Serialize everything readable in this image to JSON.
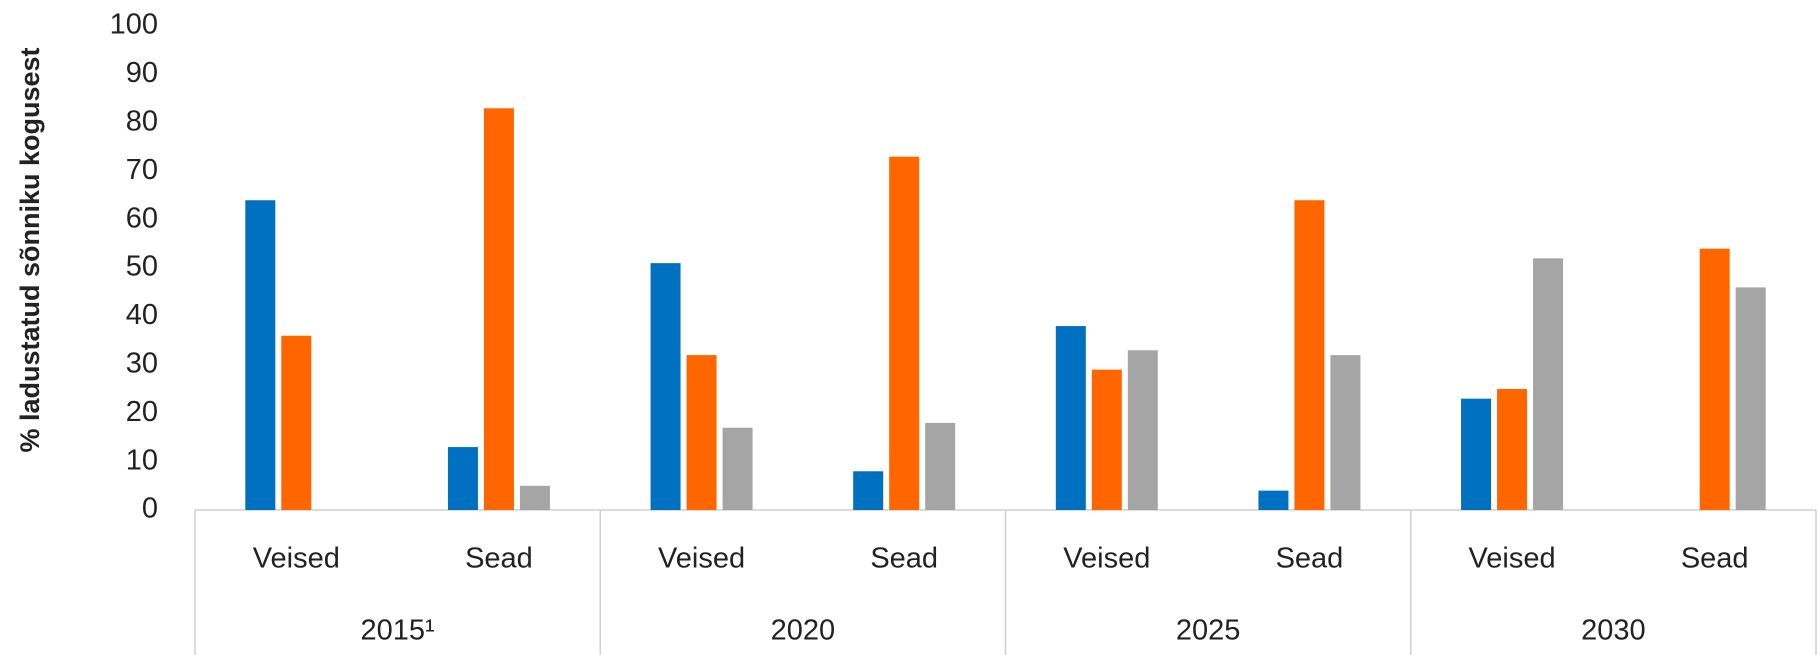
{
  "chart_data": {
    "type": "bar",
    "y_label": "% ladustatud sõnniku kogusest",
    "categories": [
      "Veised",
      "Sead",
      "Veised",
      "Sead",
      "Veised",
      "Sead",
      "Veised",
      "Sead"
    ],
    "groups": [
      "2015¹",
      "2020",
      "2025",
      "2030"
    ],
    "series": [
      {
        "color": "#0070c0",
        "values": [
          64,
          13,
          51,
          8,
          38,
          4,
          23,
          0
        ]
      },
      {
        "color": "#ff6600",
        "values": [
          36,
          83,
          32,
          73,
          29,
          64,
          25,
          54
        ]
      },
      {
        "color": "#a5a5a5",
        "values": [
          0,
          5,
          17,
          18,
          33,
          32,
          52,
          46
        ]
      }
    ],
    "ylim": [
      0,
      100
    ],
    "yticks": [
      0,
      10,
      20,
      30,
      40,
      50,
      60,
      70,
      80,
      90,
      100
    ],
    "grid": false
  }
}
